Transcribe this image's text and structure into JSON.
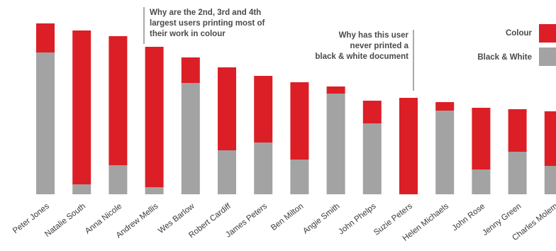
{
  "chart_data": {
    "type": "bar",
    "stacked": true,
    "categories": [
      "Peter Jones",
      "Natalie South",
      "Anna Nicole",
      "Andrew Mellis",
      "Wes Barlow",
      "Robert Cardiff",
      "James Peters",
      "Ben Milton",
      "Angie Smith",
      "John Phelps",
      "Suzie Peters",
      "Helen Michaels",
      "John Rose",
      "Jenny Green",
      "Charles Molem"
    ],
    "series": [
      {
        "name": "Black & White",
        "color": "#a3a3a3",
        "values": [
          200,
          14,
          41,
          10,
          157,
          62,
          73,
          49,
          142,
          100,
          0,
          118,
          35,
          60,
          40
        ]
      },
      {
        "name": "Colour",
        "color": "#dc1f26",
        "values": [
          41,
          217,
          182,
          198,
          36,
          117,
          94,
          109,
          10,
          32,
          136,
          12,
          87,
          60,
          77
        ]
      }
    ],
    "legend_position": "top-right",
    "grid": false,
    "annotations": [
      {
        "lines": [
          "Why are the 2nd, 3rd and 4th",
          "largest users printing most of",
          "their work in colour"
        ]
      },
      {
        "lines": [
          "Why has this user",
          "never printed a",
          "black & white document"
        ]
      }
    ]
  }
}
